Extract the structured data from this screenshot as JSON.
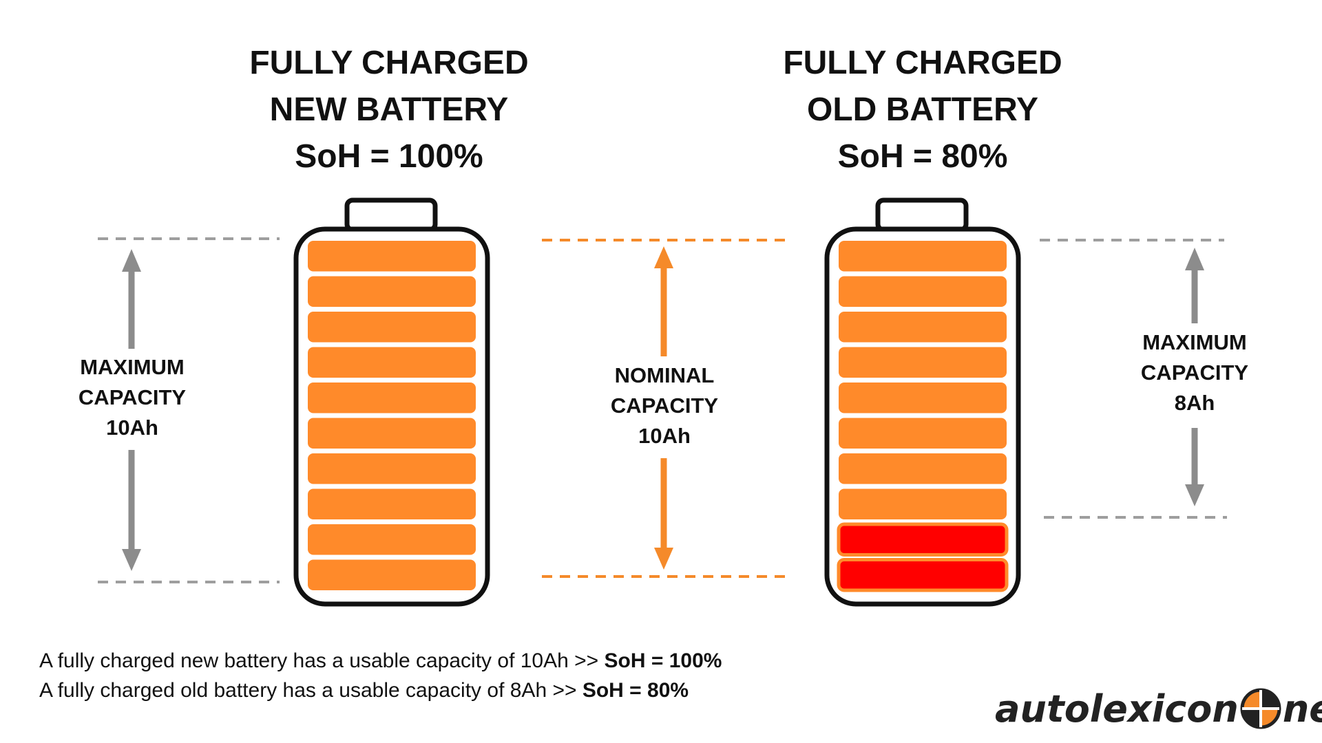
{
  "left_battery": {
    "heading": [
      "FULLY CHARGED",
      "NEW BATTERY",
      "SoH = 100%"
    ],
    "cells_total": 10,
    "cells_faded": 0
  },
  "right_battery": {
    "heading": [
      "FULLY CHARGED",
      "OLD BATTERY",
      "SoH = 80%"
    ],
    "cells_total": 10,
    "cells_faded": 2
  },
  "labels": {
    "left": [
      "MAXIMUM",
      "CAPACITY",
      "10Ah"
    ],
    "middle": [
      "NOMINAL",
      "CAPACITY",
      "10Ah"
    ],
    "right": [
      "MAXIMUM",
      "CAPACITY",
      "8Ah"
    ]
  },
  "summary": [
    {
      "text": "A fully charged new battery has a usable capacity of 10Ah >> ",
      "bold": "SoH = 100%"
    },
    {
      "text": "A fully charged old battery has a usable capacity of 8Ah >> ",
      "bold": "SoH = 80%"
    }
  ],
  "logo": {
    "left": "autolexicon",
    "right": "net"
  },
  "colors": {
    "cell": "#FF8A2A",
    "cell_faded": "#FF0000",
    "outline": "#111111",
    "guide_gray": "#9E9E9E",
    "arrow_gray": "#8C8C8C",
    "accent": "#F58A2A"
  }
}
